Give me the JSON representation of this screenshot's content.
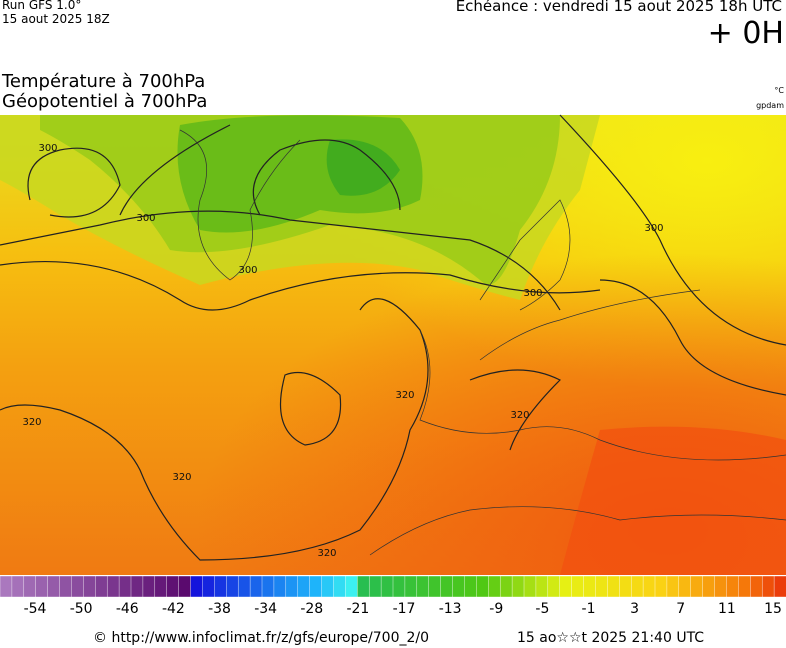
{
  "header": {
    "run": "Run GFS 1.0°",
    "run_date": "15 aout 2025 18Z",
    "forecast": "Echéance : vendredi 15 aout 2025 18h UTC",
    "lead": "+ 0H"
  },
  "map": {
    "title_line1": "Température à 700hPa",
    "title_line2": "Géopotentiel à 700hPa",
    "unit_temp": "°C",
    "unit_geo": "gpdam",
    "contour_labels": [
      "300",
      "300",
      "300",
      "300",
      "300",
      "320",
      "320",
      "320",
      "320",
      "320"
    ]
  },
  "colorbar": {
    "labels": [
      -54,
      -50,
      -46,
      -42,
      -38,
      -34,
      -28,
      -21,
      -17,
      -13,
      -9,
      -5,
      -1,
      3,
      7,
      11,
      15
    ]
  },
  "footer": {
    "source": "© http://www.infoclimat.fr/z/gfs/europe/700_2/0",
    "generated": "15 ao☆☆t 2025 21:40 UTC"
  }
}
